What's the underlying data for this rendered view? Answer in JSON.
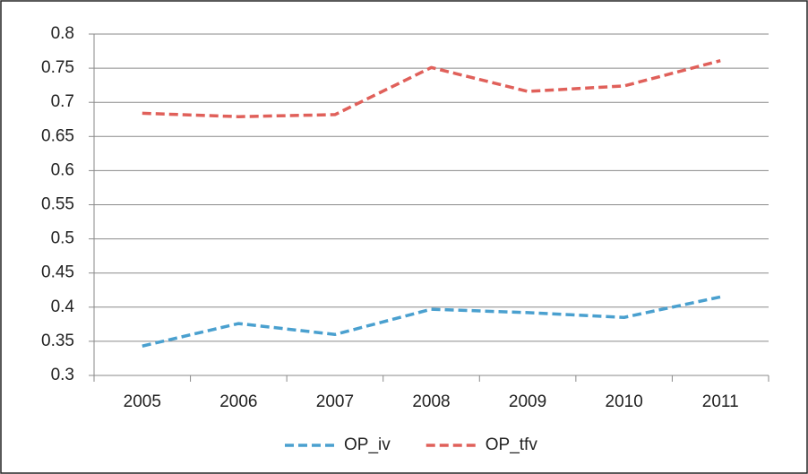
{
  "chart_data": {
    "type": "line",
    "categories": [
      "2005",
      "2006",
      "2007",
      "2008",
      "2009",
      "2010",
      "2011"
    ],
    "series": [
      {
        "name": "OP_iv",
        "color": "#4aa0cf",
        "values": [
          0.343,
          0.376,
          0.36,
          0.397,
          0.392,
          0.385,
          0.415
        ]
      },
      {
        "name": "OP_tfv",
        "color": "#e0605a",
        "values": [
          0.684,
          0.679,
          0.682,
          0.751,
          0.716,
          0.724,
          0.761
        ]
      }
    ],
    "ylim": [
      0.3,
      0.8
    ],
    "yticks": [
      0.3,
      0.35,
      0.4,
      0.45,
      0.5,
      0.55,
      0.6,
      0.65,
      0.7,
      0.75,
      0.8
    ],
    "grid": true,
    "legend": "bottom"
  }
}
